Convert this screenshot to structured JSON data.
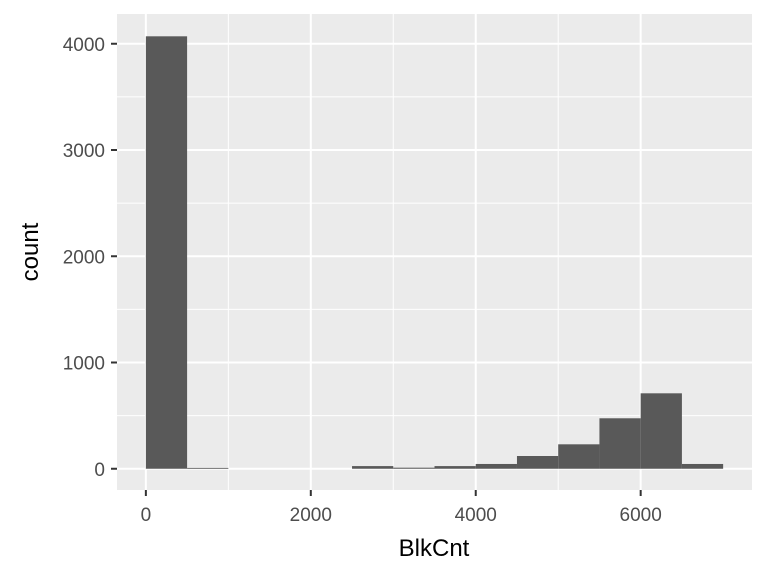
{
  "chart_data": {
    "type": "bar",
    "title": "",
    "xlabel": "BlkCnt",
    "ylabel": "count",
    "xlim": [
      -350,
      7350
    ],
    "ylim": [
      -200,
      4280
    ],
    "grid": true,
    "colors": {
      "panel": "#EBEBEB",
      "grid_major": "#FFFFFF",
      "bar": "#595959",
      "tick_text": "#4D4D4D",
      "axis_title": "#000000"
    },
    "x_ticks": [
      {
        "value": 0,
        "label": "0"
      },
      {
        "value": 2000,
        "label": "2000"
      },
      {
        "value": 4000,
        "label": "4000"
      },
      {
        "value": 6000,
        "label": "6000"
      }
    ],
    "y_ticks": [
      {
        "value": 0,
        "label": "0"
      },
      {
        "value": 1000,
        "label": "1000"
      },
      {
        "value": 2000,
        "label": "2000"
      },
      {
        "value": 3000,
        "label": "3000"
      },
      {
        "value": 4000,
        "label": "4000"
      }
    ],
    "bins": [
      {
        "x0": 0,
        "x1": 500,
        "count": 4070
      },
      {
        "x0": 500,
        "x1": 1000,
        "count": 8
      },
      {
        "x0": 1000,
        "x1": 1500,
        "count": 0
      },
      {
        "x0": 1500,
        "x1": 2000,
        "count": 0
      },
      {
        "x0": 2000,
        "x1": 2500,
        "count": 0
      },
      {
        "x0": 2500,
        "x1": 3000,
        "count": 25
      },
      {
        "x0": 3000,
        "x1": 3500,
        "count": 10
      },
      {
        "x0": 3500,
        "x1": 4000,
        "count": 25
      },
      {
        "x0": 4000,
        "x1": 4500,
        "count": 45
      },
      {
        "x0": 4500,
        "x1": 5000,
        "count": 120
      },
      {
        "x0": 5000,
        "x1": 5500,
        "count": 230
      },
      {
        "x0": 5500,
        "x1": 6000,
        "count": 475
      },
      {
        "x0": 6000,
        "x1": 6500,
        "count": 710
      },
      {
        "x0": 6500,
        "x1": 7000,
        "count": 45
      }
    ]
  }
}
